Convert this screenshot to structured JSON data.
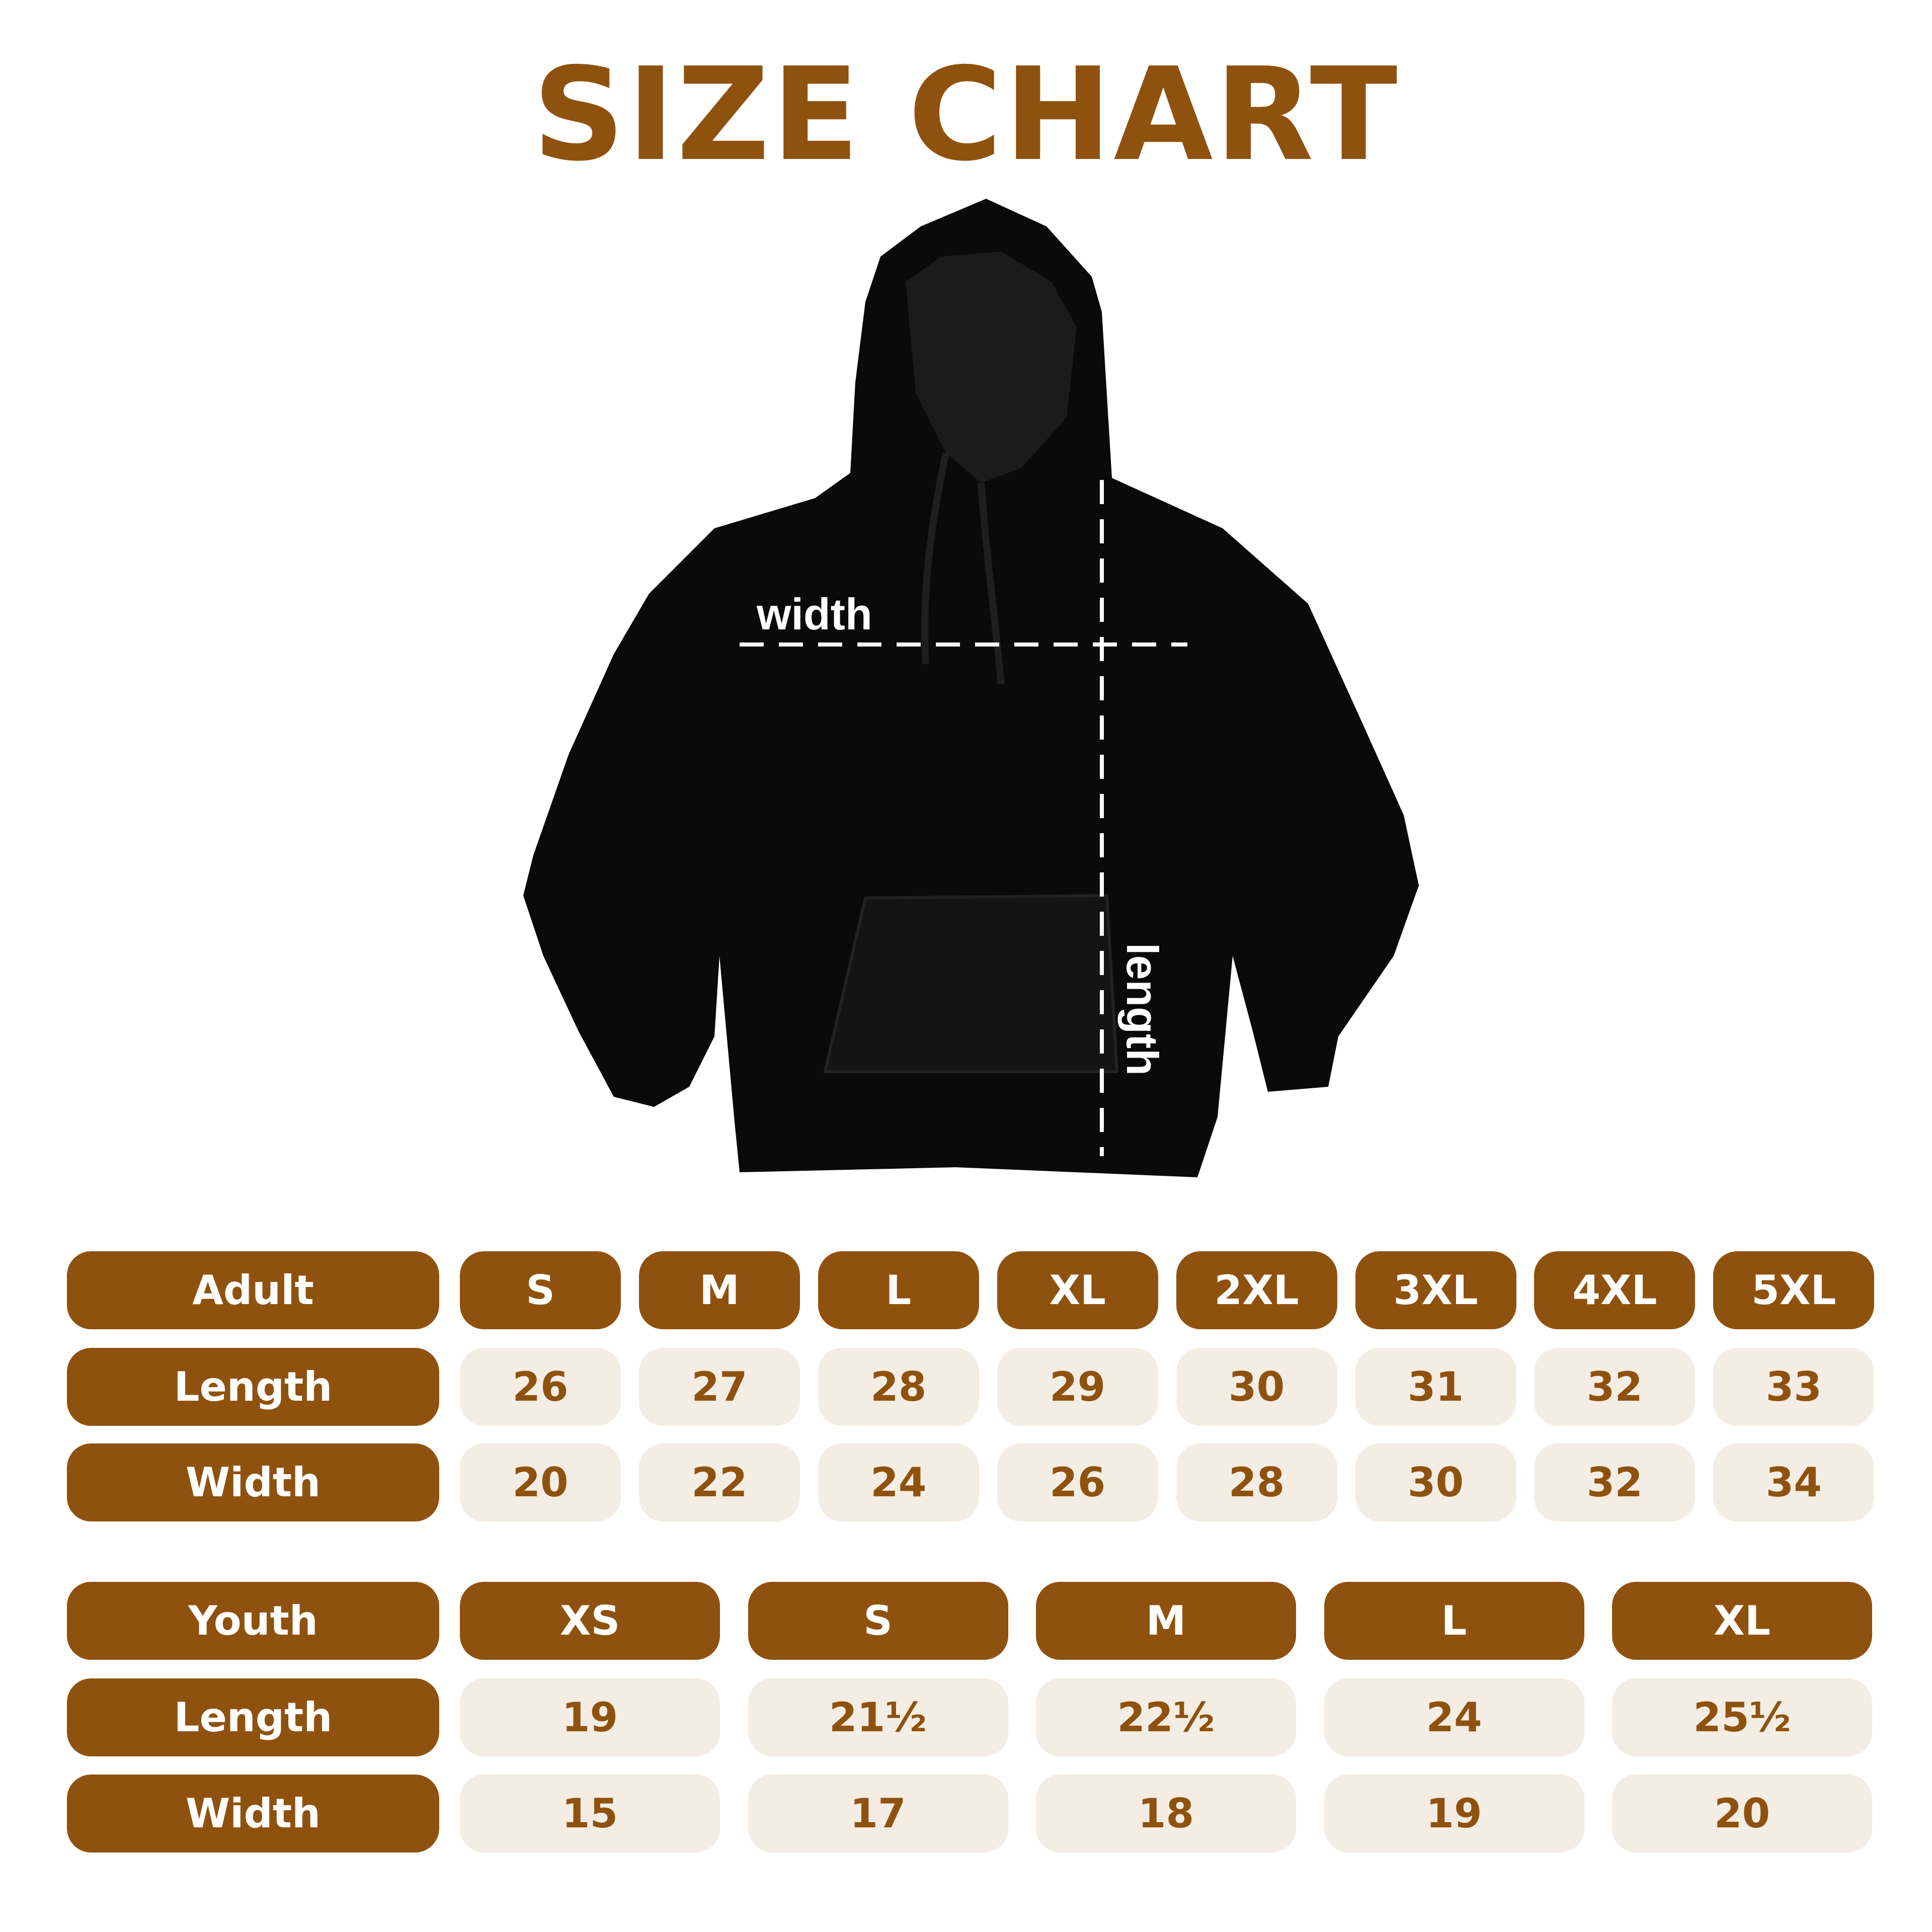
{
  "title": "SIZE CHART",
  "image": {
    "subject": "black hoodie",
    "width_label": "width",
    "length_label": "length"
  },
  "colors": {
    "brand": "#8f520e",
    "cell_bg": "#f3ede4",
    "text_light": "#ffffff"
  },
  "adult": {
    "label": "Adult",
    "sizes": [
      "S",
      "M",
      "L",
      "XL",
      "2XL",
      "3XL",
      "4XL",
      "5XL"
    ],
    "rows": [
      {
        "label": "Length",
        "values": [
          "26",
          "27",
          "28",
          "29",
          "30",
          "31",
          "32",
          "33"
        ]
      },
      {
        "label": "Width",
        "values": [
          "20",
          "22",
          "24",
          "26",
          "28",
          "30",
          "32",
          "34"
        ]
      }
    ]
  },
  "youth": {
    "label": "Youth",
    "sizes": [
      "XS",
      "S",
      "M",
      "L",
      "XL"
    ],
    "rows": [
      {
        "label": "Length",
        "values": [
          "19",
          "21½",
          "22½",
          "24",
          "25½"
        ]
      },
      {
        "label": "Width",
        "values": [
          "15",
          "17",
          "18",
          "19",
          "20"
        ]
      }
    ]
  }
}
